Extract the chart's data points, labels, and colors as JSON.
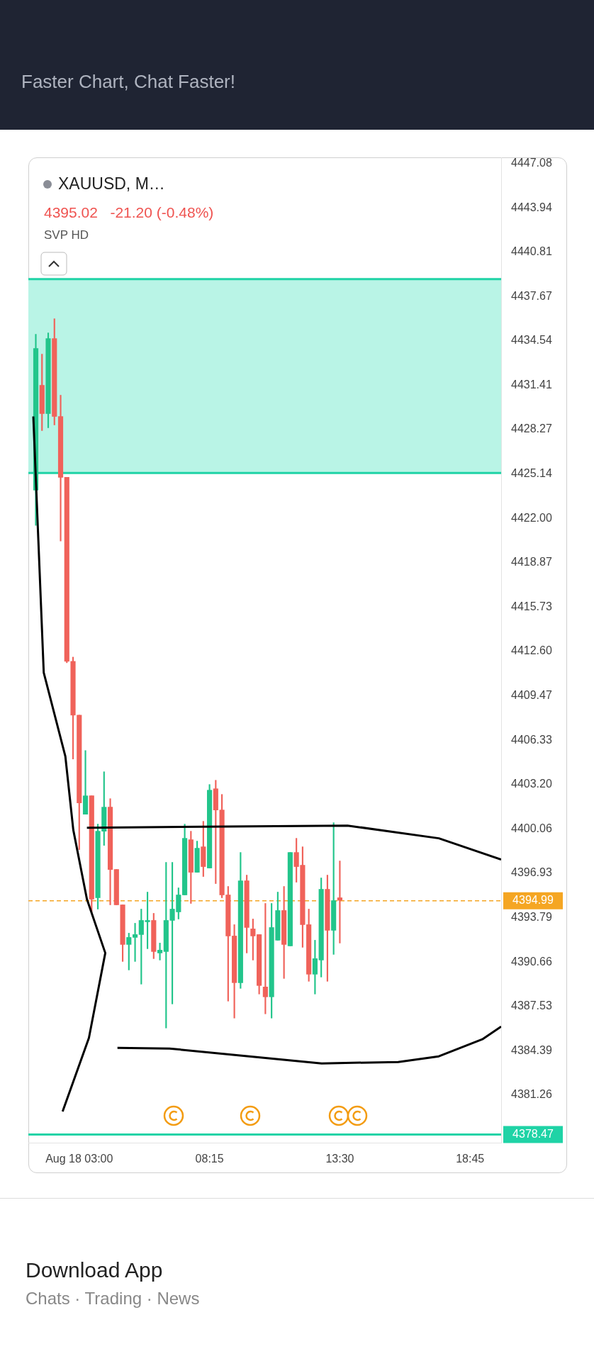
{
  "chart_data": {
    "type": "candlestick",
    "title": "XAUUSD, M…",
    "subtitle": "4395.02   -21.20 (-0.48%)",
    "annotations": [
      "Faster Chart, Chat Faster!",
      "SVP HD",
      "Download App",
      "Chats · Trading · News"
    ],
    "x": [
      1.25,
      1.5,
      1.75,
      2,
      2.25,
      2.5,
      2.75,
      3,
      3.25,
      3.5,
      3.75,
      4,
      4.25,
      4.5,
      4.75,
      5,
      5.25,
      5.5,
      5.75,
      6,
      6.25,
      6.5,
      6.75,
      7,
      7.25,
      7.5,
      7.75,
      8,
      8.25,
      8.5,
      8.75,
      9,
      9.25,
      9.5,
      9.75,
      10,
      10.25,
      10.5,
      10.75,
      11,
      11.25,
      11.5,
      11.75,
      12,
      12.25,
      12.5,
      12.75,
      13,
      13.25,
      13.5
    ],
    "ohlc": [
      [
        4424.0,
        4435.0,
        4421.5,
        4434.0
      ],
      [
        4431.4,
        4433.6,
        4428.2,
        4429.4
      ],
      [
        4429.4,
        4435.1,
        4428.4,
        4434.7
      ],
      [
        4434.7,
        4436.1,
        4428.6,
        4429.2
      ],
      [
        4429.2,
        4430.7,
        4420.4,
        4424.9
      ],
      [
        4424.9,
        4424.9,
        4411.8,
        4411.9
      ],
      [
        4411.9,
        4412.2,
        4405.0,
        4408.1
      ],
      [
        4408.1,
        4408.1,
        4398.6,
        4401.9
      ],
      [
        4401.1,
        4405.6,
        4401.1,
        4402.4
      ],
      [
        4402.4,
        4402.4,
        4394.2,
        4395.1
      ],
      [
        4395.2,
        4400.4,
        4394.4,
        4399.9
      ],
      [
        4399.9,
        4404.1,
        4398.9,
        4401.6
      ],
      [
        4401.6,
        4402.2,
        4394.7,
        4397.2
      ],
      [
        4397.2,
        4397.2,
        4394.7,
        4394.7
      ],
      [
        4394.7,
        4394.7,
        4390.7,
        4391.9
      ],
      [
        4391.9,
        4392.7,
        4390.1,
        4392.4
      ],
      [
        4392.4,
        4393.4,
        4390.7,
        4392.6
      ],
      [
        4392.6,
        4394.4,
        4389.1,
        4393.6
      ],
      [
        4393.5,
        4395.6,
        4391.6,
        4393.6
      ],
      [
        4393.6,
        4394.1,
        4390.9,
        4391.4
      ],
      [
        4391.3,
        4392.0,
        4390.8,
        4391.5
      ],
      [
        4391.4,
        4397.7,
        4386.0,
        4393.6
      ],
      [
        4393.6,
        4397.7,
        4387.7,
        4394.4
      ],
      [
        4394.2,
        4395.9,
        4393.7,
        4395.4
      ],
      [
        4395.4,
        4400.4,
        4395.4,
        4399.4
      ],
      [
        4399.3,
        4399.9,
        4394.8,
        4397.0
      ],
      [
        4397.0,
        4399.2,
        4397.0,
        4398.7
      ],
      [
        4398.8,
        4400.6,
        4396.7,
        4397.4
      ],
      [
        4397.3,
        4403.2,
        4397.3,
        4402.8
      ],
      [
        4402.9,
        4403.5,
        4396.2,
        4401.4
      ],
      [
        4401.4,
        4402.5,
        4395.2,
        4395.4
      ],
      [
        4395.4,
        4396.0,
        4387.9,
        4392.5
      ],
      [
        4392.5,
        4393.3,
        4386.7,
        4389.2
      ],
      [
        4389.2,
        4398.4,
        4388.8,
        4396.4
      ],
      [
        4396.4,
        4396.8,
        4391.3,
        4393.1
      ],
      [
        4393.0,
        4393.7,
        4390.8,
        4392.5
      ],
      [
        4392.6,
        4392.6,
        4388.4,
        4389.0
      ],
      [
        4388.9,
        4394.8,
        4387.0,
        4388.2
      ],
      [
        4388.2,
        4394.8,
        4386.7,
        4393.1
      ],
      [
        4392.2,
        4395.6,
        4392.2,
        4394.3
      ],
      [
        4394.3,
        4396.0,
        4389.5,
        4391.9
      ],
      [
        4391.8,
        4398.4,
        4391.8,
        4398.4
      ],
      [
        4398.4,
        4399.4,
        4396.3,
        4397.4
      ],
      [
        4397.5,
        4398.8,
        4391.7,
        4393.3
      ],
      [
        4393.3,
        4394.4,
        4389.3,
        4389.8
      ],
      [
        4389.8,
        4392.2,
        4388.4,
        4390.9
      ],
      [
        4390.8,
        4396.6,
        4389.6,
        4395.8
      ],
      [
        4395.8,
        4396.8,
        4389.3,
        4392.9
      ],
      [
        4392.9,
        4400.5,
        4391.2,
        4395.0
      ],
      [
        4395.2,
        4397.8,
        4392.0,
        4395.02
      ]
    ],
    "series": [
      {
        "type": "line",
        "color": "#000000",
        "x": [
          1.15,
          1.57,
          2.44,
          2.76,
          3.31,
          4.05,
          3.39,
          2.33
        ],
        "values": [
          4429.2,
          4411.1,
          4405.2,
          4400.0,
          4395.1,
          4391.3,
          4385.3,
          4380.1
        ]
      },
      {
        "type": "line",
        "color": "#000000",
        "x": [
          3.31,
          13.81,
          17.49,
          20.0
        ],
        "values": [
          4400.15,
          4400.3,
          4399.4,
          4397.9
        ]
      },
      {
        "type": "line",
        "color": "#000000",
        "x": [
          4.54,
          6.64,
          12.77,
          15.85,
          17.49,
          19.24,
          20.0
        ],
        "values": [
          4384.6,
          4384.55,
          4383.5,
          4383.6,
          4384.0,
          4385.2,
          4386.1
        ]
      }
    ],
    "marker": "none",
    "line_style": "solid",
    "xlim": [
      0.95,
      20.0
    ],
    "xticks": [
      {
        "value": 3,
        "label": "Aug 18 03:00"
      },
      {
        "value": 8.25,
        "label": "08:15"
      },
      {
        "value": 13.5,
        "label": "13:30"
      },
      {
        "value": 18.75,
        "label": "18:45"
      }
    ],
    "ylim": [
      4377.9,
      4447.5
    ],
    "yticks": [
      4447.08,
      4443.94,
      4440.81,
      4437.67,
      4434.54,
      4431.41,
      4428.27,
      4425.14,
      {
        "value": 4422.0,
        "label": "4422.00"
      },
      4418.87,
      4415.73,
      {
        "value": 4412.6,
        "label": "4412.60"
      },
      4409.47,
      4406.33,
      {
        "value": 4403.2,
        "label": "4403.20"
      },
      4400.06,
      4396.93,
      4393.79,
      4390.66,
      4387.53,
      4384.39,
      4381.26
    ],
    "ref_lines": [
      {
        "axis": "y",
        "value": 4394.99,
        "label": "4394.99",
        "color": "#f5a623",
        "line_style": "dashed"
      },
      {
        "axis": "y",
        "value": 4378.47,
        "label": "4378.47",
        "color": "#1fd3a6",
        "line_style": "solid"
      },
      {
        "axis": "y",
        "value": 4438.9,
        "color": "#1fd3a6",
        "line_style": "solid"
      },
      {
        "axis": "y",
        "value": 4425.2,
        "color": "#1fd3a6",
        "line_style": "solid"
      }
    ],
    "bands": [
      {
        "axis": "y",
        "from": 4425.2,
        "to": 4438.9,
        "color": "#b9f4e6"
      }
    ],
    "grid": false,
    "legend": false
  }
}
